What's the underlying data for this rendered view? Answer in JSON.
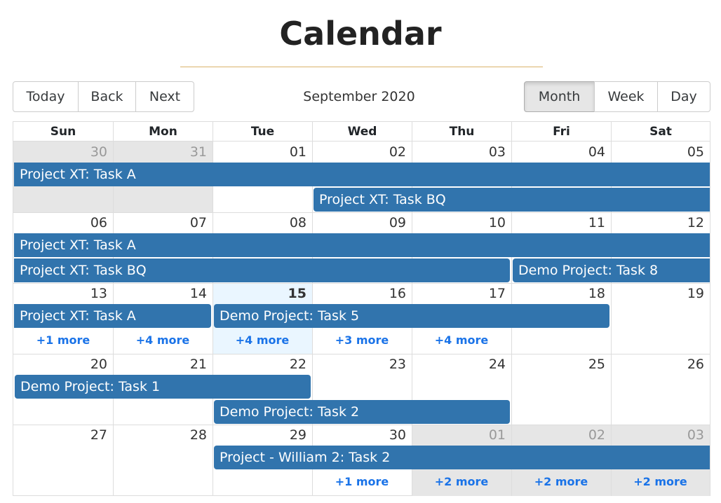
{
  "page": {
    "title": "Calendar"
  },
  "toolbar": {
    "nav": [
      "Today",
      "Back",
      "Next"
    ],
    "label": "September 2020",
    "views": [
      "Month",
      "Week",
      "Day"
    ],
    "active_view": "Month"
  },
  "calendar": {
    "weekdays": [
      "Sun",
      "Mon",
      "Tue",
      "Wed",
      "Thu",
      "Fri",
      "Sat"
    ],
    "weeks": [
      {
        "dates": [
          "30",
          "31",
          "01",
          "02",
          "03",
          "04",
          "05"
        ],
        "off": [
          0,
          1
        ]
      },
      {
        "dates": [
          "06",
          "07",
          "08",
          "09",
          "10",
          "11",
          "12"
        ],
        "off": []
      },
      {
        "dates": [
          "13",
          "14",
          "15",
          "16",
          "17",
          "18",
          "19"
        ],
        "off": [],
        "today": 2
      },
      {
        "dates": [
          "20",
          "21",
          "22",
          "23",
          "24",
          "25",
          "26"
        ],
        "off": []
      },
      {
        "dates": [
          "27",
          "28",
          "29",
          "30",
          "01",
          "02",
          "03"
        ],
        "off": [
          4,
          5,
          6
        ]
      }
    ],
    "events": [
      {
        "week": 0,
        "slot": 0,
        "start": 0,
        "span": 7,
        "title": "Project XT: Task A",
        "cont_left": true,
        "cont_right": true
      },
      {
        "week": 0,
        "slot": 1,
        "start": 3,
        "span": 4,
        "title": "Project XT: Task BQ",
        "cont_right": true
      },
      {
        "week": 1,
        "slot": 0,
        "start": 0,
        "span": 7,
        "title": "Project XT: Task A",
        "cont_left": true,
        "cont_right": true
      },
      {
        "week": 1,
        "slot": 1,
        "start": 0,
        "span": 5,
        "title": "Project XT: Task BQ",
        "cont_left": true
      },
      {
        "week": 1,
        "slot": 1,
        "start": 5,
        "span": 2,
        "title": "Demo Project: Task 8",
        "cont_right": true
      },
      {
        "week": 2,
        "slot": 0,
        "start": 0,
        "span": 2,
        "title": "Project XT: Task A",
        "cont_left": true
      },
      {
        "week": 2,
        "slot": 0,
        "start": 2,
        "span": 4,
        "title": "Demo Project: Task 5"
      },
      {
        "week": 3,
        "slot": 0,
        "start": 0,
        "span": 3,
        "title": "Demo Project: Task 1"
      },
      {
        "week": 3,
        "slot": 1,
        "start": 2,
        "span": 3,
        "title": "Demo Project: Task 2"
      },
      {
        "week": 4,
        "slot": 0,
        "start": 2,
        "span": 5,
        "title": "Project - William 2: Task 2",
        "cont_right": true
      }
    ],
    "more_links": [
      {
        "week": 2,
        "day": 0,
        "text": "+1 more"
      },
      {
        "week": 2,
        "day": 1,
        "text": "+4 more"
      },
      {
        "week": 2,
        "day": 2,
        "text": "+4 more"
      },
      {
        "week": 2,
        "day": 3,
        "text": "+3 more"
      },
      {
        "week": 2,
        "day": 4,
        "text": "+4 more"
      },
      {
        "week": 4,
        "day": 3,
        "text": "+1 more"
      },
      {
        "week": 4,
        "day": 4,
        "text": "+2 more"
      },
      {
        "week": 4,
        "day": 5,
        "text": "+2 more"
      },
      {
        "week": 4,
        "day": 6,
        "text": "+2 more"
      }
    ]
  },
  "colors": {
    "event": "#3174ad",
    "off_range": "#e6e6e6",
    "today": "#eaf6ff",
    "rule": "#d9b26a"
  }
}
